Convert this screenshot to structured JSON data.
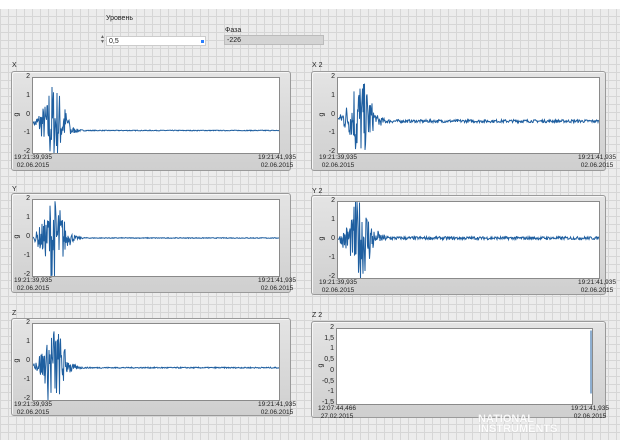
{
  "controls": {
    "level_label": "Уровень",
    "level_value": "0,5",
    "phase_label": "Фаза",
    "phase_value": "-226"
  },
  "logo": "NATIONAL INSTRUMENTS",
  "colors": {
    "trace": "#1f5fa0",
    "plot_bg": "#ffffff",
    "frame": "#d8d8d8"
  },
  "chart_data": [
    {
      "id": "X",
      "type": "line",
      "title": "X",
      "ylabel": "g",
      "ylim": [
        -2,
        2
      ],
      "yticks": [
        "2",
        "1",
        "0",
        "-1",
        "-2"
      ],
      "x_start": "19:21:39,935",
      "x_start_date": "02.06.2015",
      "x_end": "19:21:41,935",
      "x_end_date": "02.06.2015",
      "burst_end_fraction": 0.15,
      "steady_level": -0.8,
      "noise": 0.02
    },
    {
      "id": "X2",
      "type": "line",
      "title": "X 2",
      "ylabel": "g",
      "ylim": [
        -2,
        2
      ],
      "yticks": [
        "2",
        "1",
        "0",
        "-1",
        "-2"
      ],
      "x_start": "19:21:39,935",
      "x_start_date": "02.06.2015",
      "x_end": "19:21:41,935",
      "x_end_date": "02.06.2015",
      "burst_end_fraction": 0.15,
      "steady_level": -0.3,
      "noise": 0.08
    },
    {
      "id": "Y",
      "type": "line",
      "title": "Y",
      "ylabel": "g",
      "ylim": [
        -2,
        2
      ],
      "yticks": [
        "2",
        "1",
        "0",
        "-1",
        "-2"
      ],
      "x_start": "19:21:39,935",
      "x_start_date": "02.06.2015",
      "x_end": "19:21:41,935",
      "x_end_date": "02.06.2015",
      "burst_end_fraction": 0.15,
      "steady_level": 0,
      "noise": 0.02
    },
    {
      "id": "Y2",
      "type": "line",
      "title": "Y 2",
      "ylabel": "g",
      "ylim": [
        -2,
        2
      ],
      "yticks": [
        "2",
        "1",
        "0",
        "-1",
        "-2"
      ],
      "x_start": "19:21:39,935",
      "x_start_date": "02.06.2015",
      "x_end": "19:21:41,935",
      "x_end_date": "02.06.2015",
      "burst_end_fraction": 0.15,
      "steady_level": 0.1,
      "noise": 0.08
    },
    {
      "id": "Z",
      "type": "line",
      "title": "Z",
      "ylabel": "g",
      "ylim": [
        -2,
        2
      ],
      "yticks": [
        "2",
        "1",
        "0",
        "-1",
        "-2"
      ],
      "x_start": "19:21:39,935",
      "x_start_date": "02.06.2015",
      "x_end": "19:21:41,935",
      "x_end_date": "02.06.2015",
      "burst_end_fraction": 0.15,
      "steady_level": -0.3,
      "noise": 0.03
    },
    {
      "id": "Z2",
      "type": "line",
      "title": "Z 2",
      "ylabel": "g",
      "ylim": [
        -1.5,
        2
      ],
      "yticks": [
        "2",
        "1,5",
        "1",
        "0,5",
        "0",
        "-0,5",
        "-1",
        "-1,5"
      ],
      "x_start": "12:07:44,466",
      "x_start_date": "27.02.2015",
      "x_end": "19:21:41,935",
      "x_end_date": "02.06.2015",
      "burst_end_fraction": 0,
      "steady_level": null,
      "noise": 0
    }
  ]
}
